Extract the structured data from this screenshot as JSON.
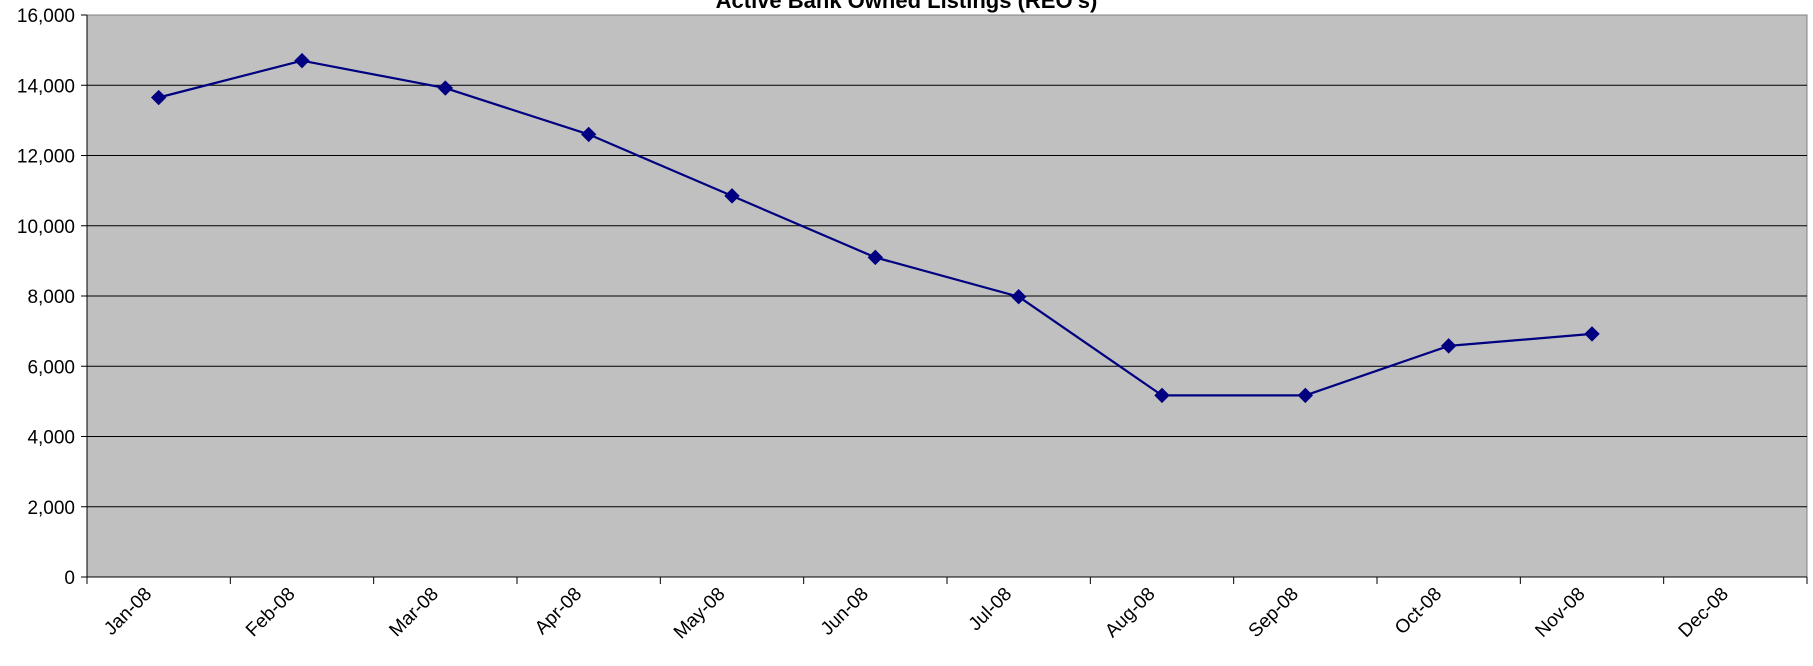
{
  "chart_data": {
    "type": "line",
    "title": "Active Bank Owned Listings (REO's)",
    "xlabel": "",
    "ylabel": "",
    "categories": [
      "Jan-08",
      "Feb-08",
      "Mar-08",
      "Apr-08",
      "May-08",
      "Jun-08",
      "Jul-08",
      "Aug-08",
      "Sep-08",
      "Oct-08",
      "Nov-08",
      "Dec-08"
    ],
    "series": [
      {
        "values": [
          13650,
          14700,
          13920,
          12600,
          10850,
          9100,
          7980,
          5170,
          5170,
          6580,
          6920,
          null
        ]
      }
    ],
    "ylim": [
      0,
      16000
    ],
    "yticks": [
      0,
      2000,
      4000,
      6000,
      8000,
      10000,
      12000,
      14000,
      16000
    ],
    "ytick_labels": [
      "0",
      "2,000",
      "4,000",
      "6,000",
      "8,000",
      "10,000",
      "12,000",
      "14,000",
      "16,000"
    ],
    "grid": true,
    "legend": "none",
    "colors": {
      "plot_background": "#c0c0c0",
      "line": "#000080",
      "marker": "#000080",
      "gridline": "#000000",
      "axis": "#808080"
    },
    "marker": "diamond"
  }
}
